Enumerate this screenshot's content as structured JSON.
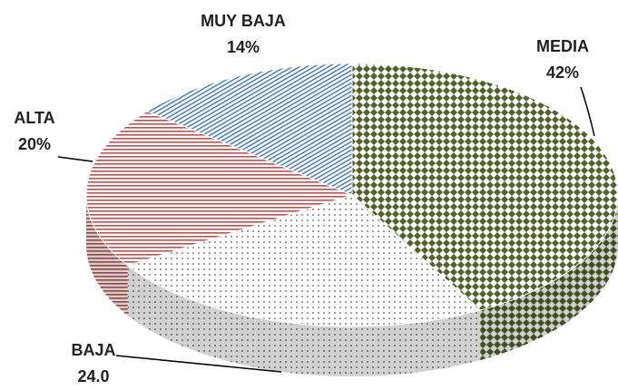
{
  "chart_data": {
    "type": "pie",
    "categories": [
      "MEDIA",
      "BAJA",
      "ALTA",
      "MUY BAJA"
    ],
    "values": [
      42,
      24,
      20,
      14
    ],
    "value_labels": [
      "42%",
      "24.0",
      "20%",
      "14%"
    ],
    "colors": [
      "#4f6228",
      "#595959",
      "#c0504d",
      "#4f81bd"
    ]
  }
}
